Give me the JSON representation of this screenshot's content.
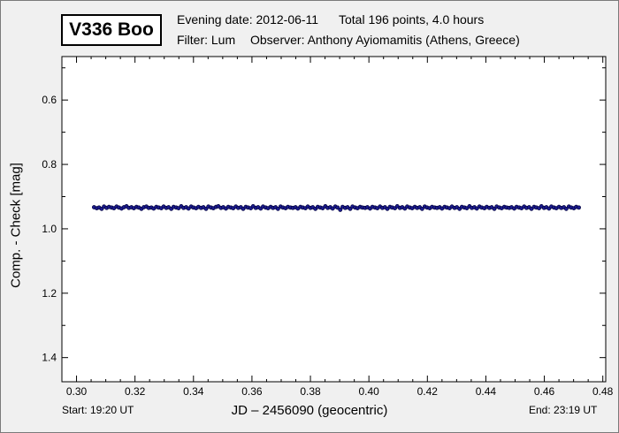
{
  "header": {
    "star_name": "V336 Boo",
    "evening_date": "Evening date: 2012-06-11",
    "total": "Total 196 points, 4.0 hours",
    "filter": "Filter: Lum",
    "observer": "Observer: Anthony Ayiomamitis (Athens, Greece)"
  },
  "footer": {
    "start": "Start: 19:20 UT",
    "end": "End: 23:19 UT"
  },
  "chart_data": {
    "type": "scatter",
    "title": "V336 Boo",
    "xlabel": "JD – 2456090  (geocentric)",
    "ylabel": "Comp. - Check [mag]",
    "xlim": [
      0.295,
      0.481
    ],
    "ylim": [
      1.475,
      0.465
    ],
    "y_inverted": true,
    "xticks": [
      0.3,
      0.32,
      0.34,
      0.36,
      0.38,
      0.4,
      0.42,
      0.44,
      0.46,
      0.48
    ],
    "xtick_labels": [
      "0.30",
      "0.32",
      "0.34",
      "0.36",
      "0.38",
      "0.40",
      "0.42",
      "0.44",
      "0.46",
      "0.48"
    ],
    "yticks": [
      0.6,
      0.8,
      1.0,
      1.2,
      1.4
    ],
    "ytick_labels": [
      "0.6",
      "0.8",
      "1.0",
      "1.2",
      "1.4"
    ],
    "grid": false,
    "marker_color": "#1a1a8c",
    "n_points": 196,
    "x_start": 0.306,
    "x_end": 0.472,
    "mean_y": 0.934,
    "points": [
      [
        0.306,
        0.933
      ],
      [
        0.3069,
        0.936
      ],
      [
        0.3077,
        0.934
      ],
      [
        0.3086,
        0.938
      ],
      [
        0.3094,
        0.931
      ],
      [
        0.3103,
        0.935
      ],
      [
        0.3111,
        0.932
      ],
      [
        0.312,
        0.934
      ],
      [
        0.3128,
        0.936
      ],
      [
        0.3137,
        0.931
      ],
      [
        0.3145,
        0.934
      ],
      [
        0.3154,
        0.937
      ],
      [
        0.3162,
        0.933
      ],
      [
        0.3171,
        0.93
      ],
      [
        0.3179,
        0.935
      ],
      [
        0.3188,
        0.933
      ],
      [
        0.3196,
        0.936
      ],
      [
        0.3205,
        0.932
      ],
      [
        0.3213,
        0.934
      ],
      [
        0.3222,
        0.938
      ],
      [
        0.323,
        0.933
      ],
      [
        0.3239,
        0.931
      ],
      [
        0.3247,
        0.935
      ],
      [
        0.3256,
        0.934
      ],
      [
        0.3264,
        0.937
      ],
      [
        0.3273,
        0.932
      ],
      [
        0.3281,
        0.934
      ],
      [
        0.329,
        0.936
      ],
      [
        0.3298,
        0.931
      ],
      [
        0.3307,
        0.935
      ],
      [
        0.3315,
        0.933
      ],
      [
        0.3324,
        0.938
      ],
      [
        0.3332,
        0.932
      ],
      [
        0.3341,
        0.934
      ],
      [
        0.3349,
        0.936
      ],
      [
        0.3358,
        0.93
      ],
      [
        0.3366,
        0.935
      ],
      [
        0.3375,
        0.933
      ],
      [
        0.3383,
        0.937
      ],
      [
        0.3392,
        0.931
      ],
      [
        0.34,
        0.934
      ],
      [
        0.3409,
        0.936
      ],
      [
        0.3417,
        0.932
      ],
      [
        0.3426,
        0.935
      ],
      [
        0.3434,
        0.933
      ],
      [
        0.3443,
        0.938
      ],
      [
        0.3451,
        0.931
      ],
      [
        0.346,
        0.934
      ],
      [
        0.3468,
        0.936
      ],
      [
        0.3477,
        0.932
      ],
      [
        0.3485,
        0.93
      ],
      [
        0.3494,
        0.935
      ],
      [
        0.3502,
        0.933
      ],
      [
        0.3511,
        0.937
      ],
      [
        0.3519,
        0.932
      ],
      [
        0.3528,
        0.934
      ],
      [
        0.3536,
        0.936
      ],
      [
        0.3545,
        0.931
      ],
      [
        0.3553,
        0.935
      ],
      [
        0.3562,
        0.933
      ],
      [
        0.357,
        0.938
      ],
      [
        0.3579,
        0.932
      ],
      [
        0.3587,
        0.934
      ],
      [
        0.3596,
        0.936
      ],
      [
        0.3604,
        0.93
      ],
      [
        0.3613,
        0.935
      ],
      [
        0.3621,
        0.933
      ],
      [
        0.363,
        0.937
      ],
      [
        0.3638,
        0.931
      ],
      [
        0.3647,
        0.934
      ],
      [
        0.3655,
        0.936
      ],
      [
        0.3664,
        0.932
      ],
      [
        0.3672,
        0.935
      ],
      [
        0.3681,
        0.933
      ],
      [
        0.3689,
        0.938
      ],
      [
        0.3698,
        0.931
      ],
      [
        0.3706,
        0.934
      ],
      [
        0.3715,
        0.936
      ],
      [
        0.3723,
        0.932
      ],
      [
        0.3732,
        0.934
      ],
      [
        0.374,
        0.935
      ],
      [
        0.3749,
        0.933
      ],
      [
        0.3757,
        0.937
      ],
      [
        0.3766,
        0.932
      ],
      [
        0.3774,
        0.934
      ],
      [
        0.3783,
        0.936
      ],
      [
        0.3791,
        0.931
      ],
      [
        0.38,
        0.935
      ],
      [
        0.3808,
        0.933
      ],
      [
        0.3817,
        0.938
      ],
      [
        0.3825,
        0.932
      ],
      [
        0.3834,
        0.934
      ],
      [
        0.3842,
        0.936
      ],
      [
        0.3851,
        0.93
      ],
      [
        0.3859,
        0.935
      ],
      [
        0.3868,
        0.933
      ],
      [
        0.3876,
        0.937
      ],
      [
        0.3885,
        0.931
      ],
      [
        0.3893,
        0.934
      ],
      [
        0.3902,
        0.941
      ],
      [
        0.391,
        0.932
      ],
      [
        0.3919,
        0.935
      ],
      [
        0.3927,
        0.933
      ],
      [
        0.3936,
        0.938
      ],
      [
        0.3944,
        0.931
      ],
      [
        0.3953,
        0.934
      ],
      [
        0.3961,
        0.936
      ],
      [
        0.397,
        0.932
      ],
      [
        0.3978,
        0.934
      ],
      [
        0.3987,
        0.935
      ],
      [
        0.3995,
        0.933
      ],
      [
        0.4004,
        0.937
      ],
      [
        0.4012,
        0.932
      ],
      [
        0.4021,
        0.934
      ],
      [
        0.4029,
        0.936
      ],
      [
        0.4038,
        0.931
      ],
      [
        0.4046,
        0.935
      ],
      [
        0.4055,
        0.933
      ],
      [
        0.4063,
        0.938
      ],
      [
        0.4072,
        0.932
      ],
      [
        0.408,
        0.934
      ],
      [
        0.4089,
        0.936
      ],
      [
        0.4097,
        0.93
      ],
      [
        0.4106,
        0.935
      ],
      [
        0.4114,
        0.933
      ],
      [
        0.4123,
        0.937
      ],
      [
        0.4131,
        0.931
      ],
      [
        0.414,
        0.934
      ],
      [
        0.4148,
        0.936
      ],
      [
        0.4157,
        0.932
      ],
      [
        0.4165,
        0.935
      ],
      [
        0.4174,
        0.933
      ],
      [
        0.4182,
        0.938
      ],
      [
        0.4191,
        0.931
      ],
      [
        0.4199,
        0.934
      ],
      [
        0.4208,
        0.936
      ],
      [
        0.4216,
        0.932
      ],
      [
        0.4225,
        0.934
      ],
      [
        0.4233,
        0.935
      ],
      [
        0.4242,
        0.933
      ],
      [
        0.425,
        0.937
      ],
      [
        0.4259,
        0.932
      ],
      [
        0.4267,
        0.934
      ],
      [
        0.4276,
        0.936
      ],
      [
        0.4284,
        0.931
      ],
      [
        0.4293,
        0.935
      ],
      [
        0.4301,
        0.933
      ],
      [
        0.431,
        0.938
      ],
      [
        0.4318,
        0.932
      ],
      [
        0.4327,
        0.934
      ],
      [
        0.4335,
        0.936
      ],
      [
        0.4344,
        0.93
      ],
      [
        0.4352,
        0.935
      ],
      [
        0.4361,
        0.933
      ],
      [
        0.4369,
        0.937
      ],
      [
        0.4378,
        0.931
      ],
      [
        0.4386,
        0.934
      ],
      [
        0.4395,
        0.936
      ],
      [
        0.4403,
        0.932
      ],
      [
        0.4412,
        0.935
      ],
      [
        0.442,
        0.933
      ],
      [
        0.4429,
        0.938
      ],
      [
        0.4437,
        0.931
      ],
      [
        0.4446,
        0.934
      ],
      [
        0.4454,
        0.936
      ],
      [
        0.4463,
        0.932
      ],
      [
        0.4471,
        0.934
      ],
      [
        0.448,
        0.935
      ],
      [
        0.4488,
        0.933
      ],
      [
        0.4497,
        0.937
      ],
      [
        0.4505,
        0.932
      ],
      [
        0.4514,
        0.934
      ],
      [
        0.4522,
        0.936
      ],
      [
        0.4531,
        0.931
      ],
      [
        0.4539,
        0.935
      ],
      [
        0.4548,
        0.933
      ],
      [
        0.4556,
        0.938
      ],
      [
        0.4565,
        0.932
      ],
      [
        0.4573,
        0.934
      ],
      [
        0.4582,
        0.936
      ],
      [
        0.459,
        0.93
      ],
      [
        0.4599,
        0.935
      ],
      [
        0.4607,
        0.933
      ],
      [
        0.4616,
        0.937
      ],
      [
        0.4624,
        0.931
      ],
      [
        0.4633,
        0.934
      ],
      [
        0.4641,
        0.936
      ],
      [
        0.465,
        0.932
      ],
      [
        0.4658,
        0.935
      ],
      [
        0.4667,
        0.933
      ],
      [
        0.4675,
        0.938
      ],
      [
        0.4684,
        0.931
      ],
      [
        0.4692,
        0.934
      ],
      [
        0.4701,
        0.936
      ],
      [
        0.4709,
        0.932
      ],
      [
        0.4718,
        0.934
      ]
    ]
  }
}
